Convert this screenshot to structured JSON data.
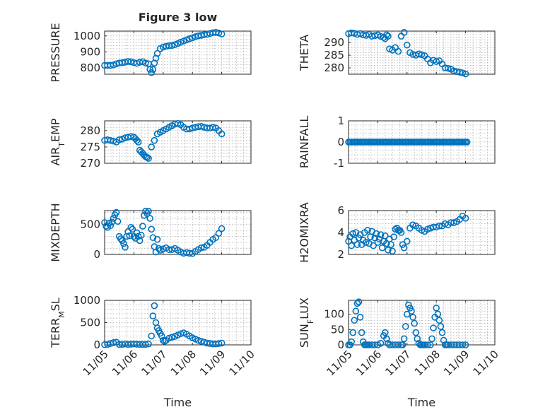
{
  "figure": {
    "title": "Figure 3 low",
    "marker_color": "#0072BD",
    "xlabel": "Time",
    "date_ticks": [
      "11/05",
      "11/06",
      "11/07",
      "11/08",
      "11/09",
      "11/10"
    ]
  },
  "chart_data": [
    {
      "type": "scatter",
      "ylabel": "PRESSURE",
      "title": "Figure 3 low",
      "xlim": [
        "11/05",
        "11/10"
      ],
      "ylim": [
        760,
        1030
      ],
      "yticks": [
        800,
        900,
        1000
      ],
      "grid": true,
      "show_xticklabels": false,
      "series": [
        {
          "x": [
            5.0,
            5.1,
            5.2,
            5.3,
            5.4,
            5.5,
            5.6,
            5.7,
            5.8,
            5.9,
            6.0,
            6.1,
            6.2,
            6.3,
            6.4,
            6.5,
            6.55,
            6.6,
            6.65,
            6.7,
            6.75,
            6.8,
            6.9,
            7.0,
            7.1,
            7.2,
            7.3,
            7.4,
            7.5,
            7.6,
            7.7,
            7.8,
            7.9,
            8.0,
            8.1,
            8.2,
            8.3,
            8.4,
            8.5,
            8.6,
            8.7,
            8.8,
            8.9,
            9.0
          ],
          "y": [
            815,
            815,
            815,
            818,
            825,
            830,
            832,
            835,
            840,
            838,
            832,
            828,
            835,
            838,
            830,
            825,
            790,
            770,
            790,
            830,
            860,
            890,
            920,
            930,
            935,
            938,
            940,
            945,
            952,
            960,
            968,
            975,
            982,
            988,
            995,
            1000,
            1003,
            1007,
            1010,
            1015,
            1020,
            1022,
            1018,
            1012
          ]
        }
      ]
    },
    {
      "type": "scatter",
      "ylabel": "THETA",
      "xlim": [
        "11/05",
        "11/10"
      ],
      "ylim": [
        277.5,
        294.5
      ],
      "yticks": [
        280,
        285,
        290
      ],
      "grid": true,
      "show_xticklabels": false,
      "series": [
        {
          "x": [
            5.0,
            5.1,
            5.2,
            5.3,
            5.4,
            5.5,
            5.6,
            5.7,
            5.8,
            5.9,
            6.0,
            6.1,
            6.2,
            6.25,
            6.3,
            6.35,
            6.4,
            6.5,
            6.6,
            6.7,
            6.8,
            6.9,
            7.0,
            7.1,
            7.2,
            7.3,
            7.4,
            7.5,
            7.6,
            7.7,
            7.8,
            7.9,
            8.0,
            8.1,
            8.2,
            8.3,
            8.4,
            8.5,
            8.6,
            8.7,
            8.8,
            8.9,
            9.0
          ],
          "y": [
            293.5,
            293.8,
            293.6,
            293.2,
            293.5,
            293.0,
            292.8,
            293.2,
            292.5,
            292.7,
            293.0,
            292.4,
            292.0,
            291.5,
            293.0,
            292.5,
            287.5,
            287.0,
            288.0,
            286.5,
            292.5,
            294.0,
            289.0,
            286.0,
            285.3,
            285.0,
            285.5,
            285.2,
            284.8,
            283.5,
            282.0,
            283.0,
            282.5,
            282.8,
            281.5,
            280.0,
            279.8,
            279.5,
            278.8,
            278.5,
            278.3,
            278.0,
            277.6
          ]
        }
      ]
    },
    {
      "type": "scatter",
      "ylabel": "AIR_TEMP",
      "xlim": [
        "11/05",
        "11/10"
      ],
      "ylim": [
        270,
        283
      ],
      "yticks": [
        270,
        275,
        280
      ],
      "grid": true,
      "show_xticklabels": false,
      "series": [
        {
          "x": [
            5.0,
            5.1,
            5.2,
            5.3,
            5.4,
            5.5,
            5.6,
            5.7,
            5.8,
            5.9,
            6.0,
            6.05,
            6.1,
            6.15,
            6.2,
            6.25,
            6.3,
            6.35,
            6.4,
            6.45,
            6.5,
            6.6,
            6.7,
            6.8,
            6.9,
            7.0,
            7.1,
            7.2,
            7.3,
            7.4,
            7.5,
            7.6,
            7.7,
            7.8,
            7.9,
            8.0,
            8.1,
            8.2,
            8.3,
            8.4,
            8.5,
            8.6,
            8.7,
            8.8,
            8.9,
            9.0
          ],
          "y": [
            277.0,
            277.2,
            277.0,
            276.8,
            276.5,
            277.2,
            277.4,
            277.8,
            278.0,
            278.2,
            278.0,
            277.5,
            277.0,
            276.5,
            274.0,
            273.5,
            273.0,
            272.5,
            272.0,
            271.8,
            271.5,
            275.0,
            277.0,
            279.0,
            279.5,
            280.0,
            280.5,
            281.0,
            281.5,
            282.0,
            282.2,
            281.8,
            281.0,
            280.5,
            280.5,
            280.8,
            281.0,
            281.2,
            281.3,
            281.0,
            280.8,
            280.8,
            281.0,
            280.8,
            280.0,
            279.0
          ]
        }
      ]
    },
    {
      "type": "scatter",
      "ylabel": "RAINFALL",
      "xlim": [
        "11/05",
        "11/10"
      ],
      "ylim": [
        -1,
        1
      ],
      "yticks": [
        -1,
        0,
        1
      ],
      "grid": true,
      "show_xticklabels": false,
      "series": [
        {
          "x_start": 5.0,
          "x_end": 9.05,
          "step": 0.05,
          "y": 0
        }
      ]
    },
    {
      "type": "scatter",
      "ylabel": "MIXDEPTH",
      "xlim": [
        "11/05",
        "11/10"
      ],
      "ylim": [
        0,
        730
      ],
      "yticks": [
        0,
        500
      ],
      "grid": true,
      "show_xticklabels": false,
      "series": [
        {
          "x": [
            5.0,
            5.05,
            5.1,
            5.15,
            5.2,
            5.25,
            5.3,
            5.35,
            5.4,
            5.45,
            5.5,
            5.55,
            5.6,
            5.65,
            5.7,
            5.75,
            5.8,
            5.85,
            5.9,
            5.95,
            6.0,
            6.05,
            6.1,
            6.15,
            6.2,
            6.25,
            6.3,
            6.35,
            6.4,
            6.45,
            6.5,
            6.55,
            6.6,
            6.65,
            6.7,
            6.75,
            6.8,
            6.85,
            6.9,
            7.0,
            7.1,
            7.2,
            7.3,
            7.4,
            7.5,
            7.6,
            7.7,
            7.8,
            7.9,
            8.0,
            8.1,
            8.2,
            8.3,
            8.4,
            8.5,
            8.6,
            8.7,
            8.8,
            8.9,
            9.0
          ],
          "y": [
            530,
            470,
            450,
            520,
            480,
            540,
            600,
            660,
            700,
            550,
            300,
            260,
            230,
            180,
            120,
            300,
            380,
            310,
            450,
            420,
            300,
            270,
            360,
            300,
            230,
            320,
            470,
            650,
            720,
            680,
            720,
            600,
            420,
            280,
            130,
            40,
            250,
            100,
            70,
            90,
            110,
            80,
            80,
            100,
            70,
            40,
            20,
            30,
            20,
            15,
            50,
            80,
            110,
            120,
            150,
            200,
            250,
            280,
            350,
            430
          ]
        }
      ]
    },
    {
      "type": "scatter",
      "ylabel": "H2OMIXRA",
      "xlim": [
        "11/05",
        "11/10"
      ],
      "ylim": [
        2,
        6
      ],
      "yticks": [
        2,
        4,
        6
      ],
      "grid": true,
      "show_xticklabels": false,
      "series": [
        {
          "x": [
            5.0,
            5.05,
            5.1,
            5.15,
            5.2,
            5.25,
            5.3,
            5.35,
            5.4,
            5.45,
            5.5,
            5.55,
            5.6,
            5.65,
            5.7,
            5.75,
            5.8,
            5.85,
            5.9,
            5.95,
            6.0,
            6.05,
            6.1,
            6.15,
            6.2,
            6.25,
            6.3,
            6.35,
            6.4,
            6.45,
            6.5,
            6.55,
            6.6,
            6.65,
            6.7,
            6.75,
            6.8,
            6.85,
            6.9,
            7.0,
            7.1,
            7.2,
            7.3,
            7.4,
            7.5,
            7.6,
            7.7,
            7.8,
            7.9,
            8.0,
            8.1,
            8.2,
            8.3,
            8.4,
            8.5,
            8.6,
            8.7,
            8.8,
            8.9,
            9.0
          ],
          "y": [
            3.2,
            3.6,
            2.8,
            3.9,
            3.3,
            4.0,
            2.9,
            3.5,
            3.8,
            2.9,
            3.3,
            4.0,
            3.1,
            4.2,
            3.0,
            3.6,
            4.1,
            2.8,
            3.5,
            3.9,
            3.1,
            3.4,
            3.8,
            2.6,
            3.2,
            3.7,
            3.0,
            2.4,
            3.4,
            2.9,
            2.3,
            3.6,
            4.3,
            4.4,
            4.2,
            4.2,
            4.0,
            2.9,
            2.6,
            3.2,
            4.4,
            4.7,
            4.6,
            4.4,
            4.2,
            4.1,
            4.3,
            4.4,
            4.5,
            4.5,
            4.6,
            4.6,
            4.8,
            4.7,
            4.9,
            4.9,
            5.0,
            5.2,
            5.5,
            5.3
          ]
        }
      ]
    },
    {
      "type": "scatter",
      "ylabel": "TERR_MSL",
      "xlim": [
        "11/05",
        "11/10"
      ],
      "ylim": [
        0,
        1000
      ],
      "yticks": [
        0,
        500,
        1000
      ],
      "grid": true,
      "show_xticklabels": true,
      "series": [
        {
          "x": [
            5.0,
            5.1,
            5.2,
            5.3,
            5.4,
            5.5,
            5.6,
            5.7,
            5.8,
            5.9,
            6.0,
            6.1,
            6.2,
            6.3,
            6.4,
            6.5,
            6.6,
            6.65,
            6.7,
            6.75,
            6.8,
            6.85,
            6.9,
            6.95,
            7.0,
            7.05,
            7.1,
            7.2,
            7.3,
            7.4,
            7.5,
            7.6,
            7.7,
            7.8,
            7.9,
            8.0,
            8.1,
            8.2,
            8.3,
            8.4,
            8.5,
            8.6,
            8.7,
            8.8,
            8.9,
            9.0
          ],
          "y": [
            5,
            10,
            30,
            50,
            60,
            10,
            10,
            20,
            10,
            15,
            20,
            15,
            10,
            10,
            10,
            20,
            200,
            650,
            880,
            500,
            380,
            320,
            260,
            200,
            100,
            80,
            100,
            150,
            170,
            190,
            220,
            250,
            270,
            240,
            200,
            160,
            130,
            100,
            80,
            60,
            40,
            30,
            20,
            20,
            30,
            40
          ]
        }
      ]
    },
    {
      "type": "scatter",
      "ylabel": "SUN_FLUX",
      "xlim": [
        "11/05",
        "11/10"
      ],
      "ylim": [
        0,
        145
      ],
      "yticks": [
        0,
        50,
        100
      ],
      "grid": true,
      "show_xticklabels": true,
      "series": [
        {
          "x": [
            5.0,
            5.05,
            5.1,
            5.15,
            5.2,
            5.25,
            5.3,
            5.35,
            5.4,
            5.45,
            5.5,
            5.55,
            5.6,
            5.65,
            5.7,
            5.8,
            5.9,
            6.0,
            6.1,
            6.2,
            6.25,
            6.3,
            6.35,
            6.4,
            6.5,
            6.6,
            6.7,
            6.8,
            6.85,
            6.9,
            6.95,
            7.0,
            7.05,
            7.1,
            7.15,
            7.2,
            7.25,
            7.3,
            7.35,
            7.4,
            7.45,
            7.5,
            7.55,
            7.6,
            7.7,
            7.8,
            7.85,
            7.9,
            7.95,
            8.0,
            8.05,
            8.1,
            8.15,
            8.2,
            8.25,
            8.3,
            8.35,
            8.4,
            8.5,
            8.6,
            8.7,
            8.8,
            8.9,
            9.0
          ],
          "y": [
            0,
            0,
            10,
            40,
            80,
            110,
            135,
            140,
            90,
            40,
            10,
            0,
            0,
            0,
            0,
            0,
            0,
            0,
            5,
            30,
            40,
            20,
            5,
            0,
            0,
            0,
            0,
            0,
            0,
            20,
            60,
            100,
            130,
            120,
            110,
            90,
            70,
            40,
            20,
            5,
            0,
            0,
            0,
            0,
            0,
            0,
            20,
            55,
            90,
            120,
            100,
            80,
            60,
            40,
            15,
            0,
            0,
            0,
            0,
            0,
            0,
            0,
            0,
            0
          ]
        }
      ]
    }
  ]
}
